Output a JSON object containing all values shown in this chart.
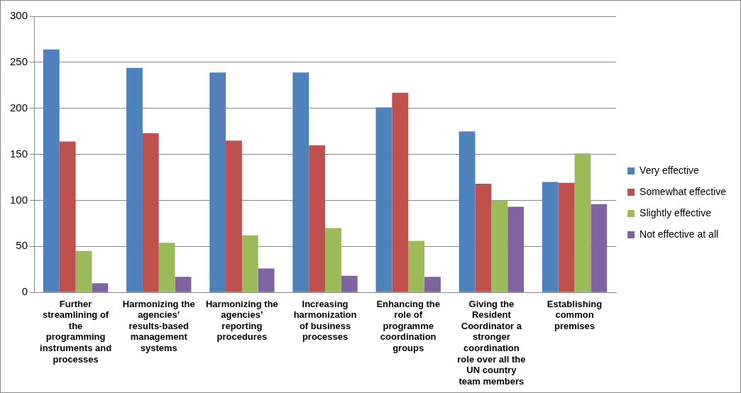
{
  "chart_data": {
    "type": "bar",
    "categories": [
      "Further streamlining of the programming instruments and processes",
      "Harmonizing the agencies’ results-based management systems",
      "Harmonizing the agencies’ reporting procedures",
      "Increasing harmonization of business processes",
      "Enhancing the role of programme coordination groups",
      "Giving the Resident Coordinator a stronger coordination role over all the UN country team members",
      "Establishing common premises"
    ],
    "series": [
      {
        "name": "Very effective",
        "color": "#4f81bd",
        "values": [
          264,
          244,
          239,
          239,
          201,
          175,
          120
        ]
      },
      {
        "name": "Somewhat effective",
        "color": "#c0504d",
        "values": [
          164,
          173,
          165,
          160,
          217,
          118,
          119
        ]
      },
      {
        "name": "Slightly effective",
        "color": "#9bbb59",
        "values": [
          45,
          54,
          62,
          70,
          56,
          100,
          151
        ]
      },
      {
        "name": "Not effective at all",
        "color": "#8064a2",
        "values": [
          10,
          17,
          26,
          18,
          17,
          93,
          96
        ]
      }
    ],
    "ylim": [
      0,
      300
    ],
    "yticks": [
      0,
      50,
      100,
      150,
      200,
      250,
      300
    ],
    "grid": "y",
    "legend": "right"
  }
}
